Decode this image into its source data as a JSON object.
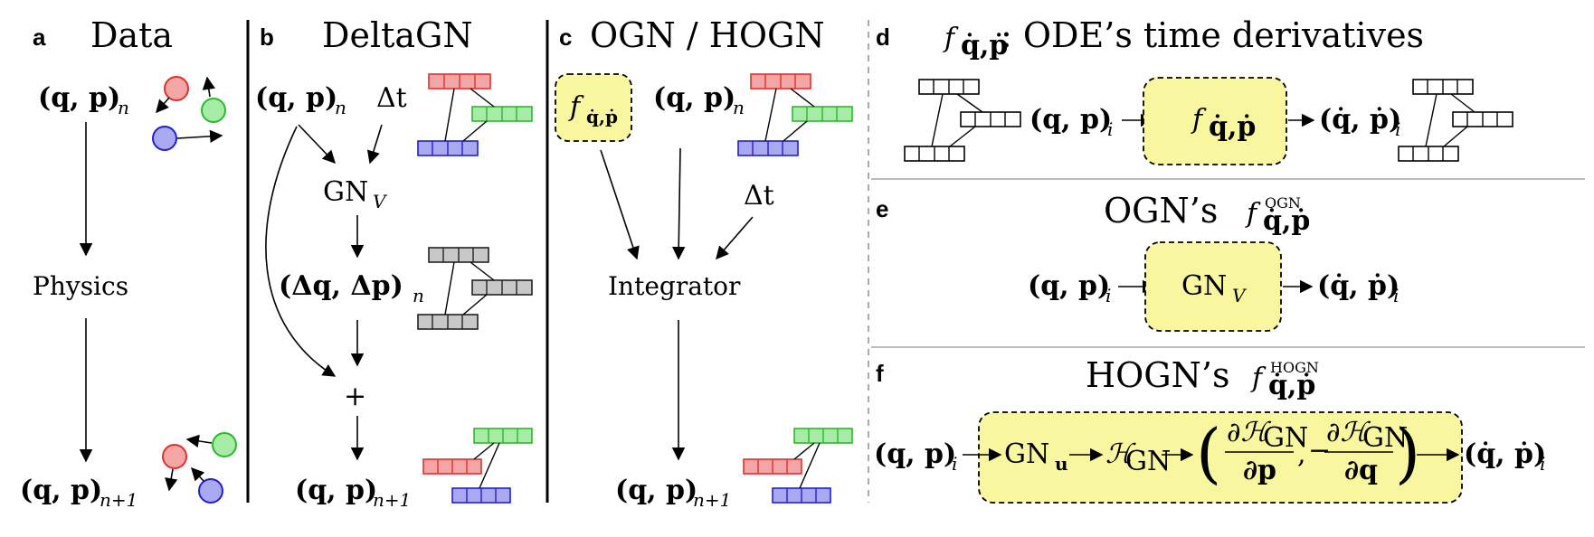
{
  "panels": {
    "a": {
      "letter": "a",
      "title": "Data",
      "state_n": "(q, p)",
      "sub_n": "n",
      "physics": "Physics",
      "state_n1": "(q, p)",
      "sub_n1": "n+1"
    },
    "b": {
      "letter": "b",
      "title": "DeltaGN",
      "state_n": "(q, p)",
      "sub_n": "n",
      "dt": "Δt",
      "gn": "GN",
      "gn_sub": "V",
      "delta": "(Δq, Δp)",
      "delta_sub": "n",
      "plus": "+",
      "state_n1": "(q, p)",
      "sub_n1": "n+1"
    },
    "c": {
      "letter": "c",
      "title": "OGN / HOGN",
      "f": "f",
      "f_sub": "q̇,ṗ",
      "state_n": "(q, p)",
      "sub_n": "n",
      "dt": "Δt",
      "integrator": "Integrator",
      "state_n1": "(q, p)",
      "sub_n1": "n+1"
    },
    "d": {
      "letter": "d",
      "f": "f",
      "f_sub": "q̇,ṗ",
      "title_rest": ": ODE’s time derivatives",
      "in": "(q, p)",
      "in_sub": "i",
      "box_f": "f",
      "box_f_sub": "q̇,ṗ",
      "out": "(q̇, ṗ)",
      "out_sub": "i"
    },
    "e": {
      "letter": "e",
      "title": "OGN’s",
      "f": "f",
      "f_sub": "q̇,ṗ",
      "f_sup": "OGN",
      "in": "(q, p)",
      "in_sub": "i",
      "gn": "GN",
      "gn_sub": "V",
      "out": "(q̇, ṗ)",
      "out_sub": "i"
    },
    "f": {
      "letter": "f",
      "title": "HOGN’s",
      "f": "f",
      "f_sub": "q̇,ṗ",
      "f_sup": "HOGN",
      "in": "(q, p)",
      "in_sub": "i",
      "gn": "GN",
      "gn_sub": "u",
      "h": "ℋ",
      "h_sub": "GN",
      "num1": "∂ℋ",
      "num1_sub": "GN",
      "den1": "∂p",
      "num2": "∂ℋ",
      "num2_sub": "GN",
      "den2": "∂q",
      "minus": "−",
      "comma": ",",
      "out": "(q̇, ṗ)",
      "out_sub": "i"
    }
  },
  "colors": {
    "red_fill": "#f4a6a6",
    "red_stroke": "#e0302d",
    "green_fill": "#a6eba6",
    "green_stroke": "#2cb82c",
    "blue_fill": "#a9a9f2",
    "blue_stroke": "#2020d0",
    "gray_fill": "#c8c8c8",
    "gray_stroke": "#222222",
    "yellow_box": "#f8f7a0"
  }
}
